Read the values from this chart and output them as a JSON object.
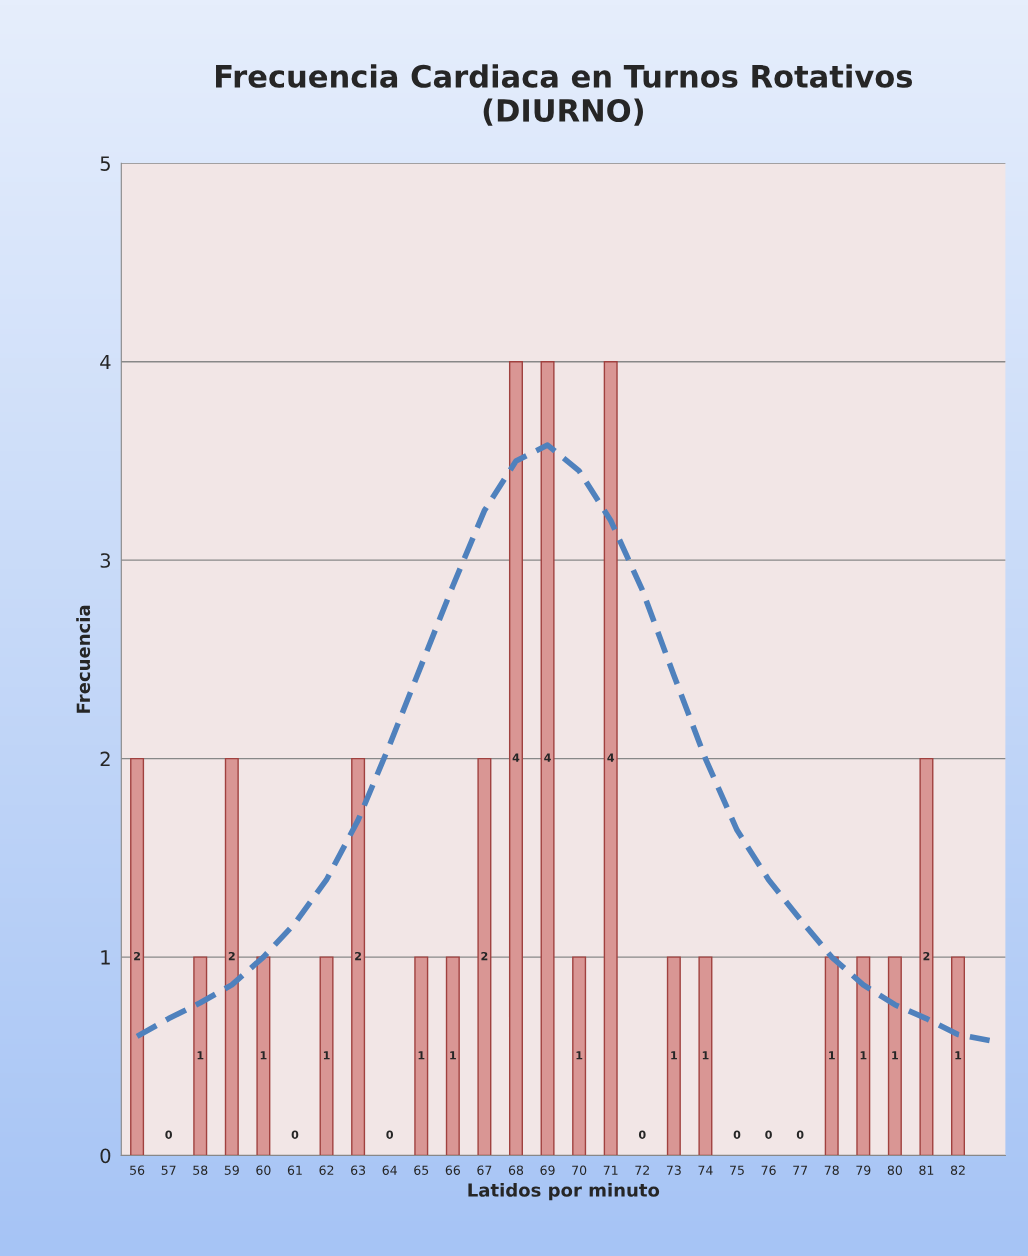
{
  "chart_data": {
    "type": "bar",
    "title": "Frecuencia Cardiaca en Turnos Rotativos\n(DIURNO)",
    "xlabel": "Latidos por minuto",
    "ylabel": "Frecuencia",
    "categories": [
      "56",
      "57",
      "58",
      "59",
      "60",
      "61",
      "62",
      "63",
      "64",
      "65",
      "66",
      "67",
      "68",
      "69",
      "70",
      "71",
      "72",
      "73",
      "74",
      "75",
      "76",
      "77",
      "78",
      "79",
      "80",
      "81",
      "82",
      null
    ],
    "series": [
      {
        "color": "#d99694",
        "values": [
          2,
          0,
          1,
          2,
          1,
          0,
          1,
          2,
          0,
          1,
          1,
          2,
          4,
          4,
          1,
          4,
          0,
          1,
          1,
          0,
          0,
          0,
          1,
          1,
          1,
          2,
          1,
          null
        ],
        "value_labels": [
          "2",
          "0",
          "1",
          "2",
          "1",
          "0",
          "1",
          "2",
          "0",
          "1",
          "1",
          "2",
          "4",
          "4",
          "1",
          "4",
          "0",
          "1",
          "1",
          "0",
          "0",
          "0",
          "1",
          "1",
          "1",
          "2",
          "1",
          null
        ]
      },
      {
        "type": "line",
        "color": "#4f81bd",
        "line_style": "dashed",
        "marker": "none",
        "values": [
          0.6,
          0.69,
          0.77,
          0.86,
          1.0,
          1.17,
          1.39,
          1.69,
          2.07,
          2.47,
          2.87,
          3.25,
          3.5,
          3.58,
          3.45,
          3.2,
          2.85,
          2.42,
          2.0,
          1.64,
          1.39,
          1.19,
          1.0,
          0.86,
          0.76,
          0.69,
          0.61,
          0.58
        ]
      }
    ],
    "ylim": [
      0,
      5
    ],
    "yticks": [
      0,
      1,
      2,
      3,
      4,
      5
    ],
    "grid": "y"
  }
}
